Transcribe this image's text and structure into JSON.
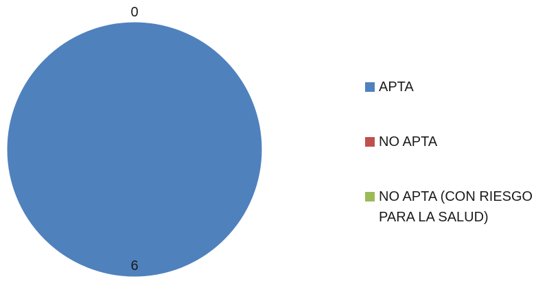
{
  "chart_data": {
    "type": "pie",
    "categories": [
      "APTA",
      "NO APTA",
      "NO APTA (CON RIESGO PARA LA SALUD)"
    ],
    "values": [
      6,
      0,
      0
    ],
    "data_labels": [
      "6",
      "0",
      "0"
    ],
    "colors": [
      "#4f81bd",
      "#c0504d",
      "#9bbb59"
    ],
    "title": "",
    "legend_position": "right"
  },
  "legend": {
    "items": [
      {
        "label": "APTA",
        "color": "#4f81bd"
      },
      {
        "label": "NO APTA",
        "color": "#c0504d"
      },
      {
        "label": "NO APTA (CON RIESGO PARA LA SALUD)",
        "color": "#9bbb59"
      }
    ]
  }
}
